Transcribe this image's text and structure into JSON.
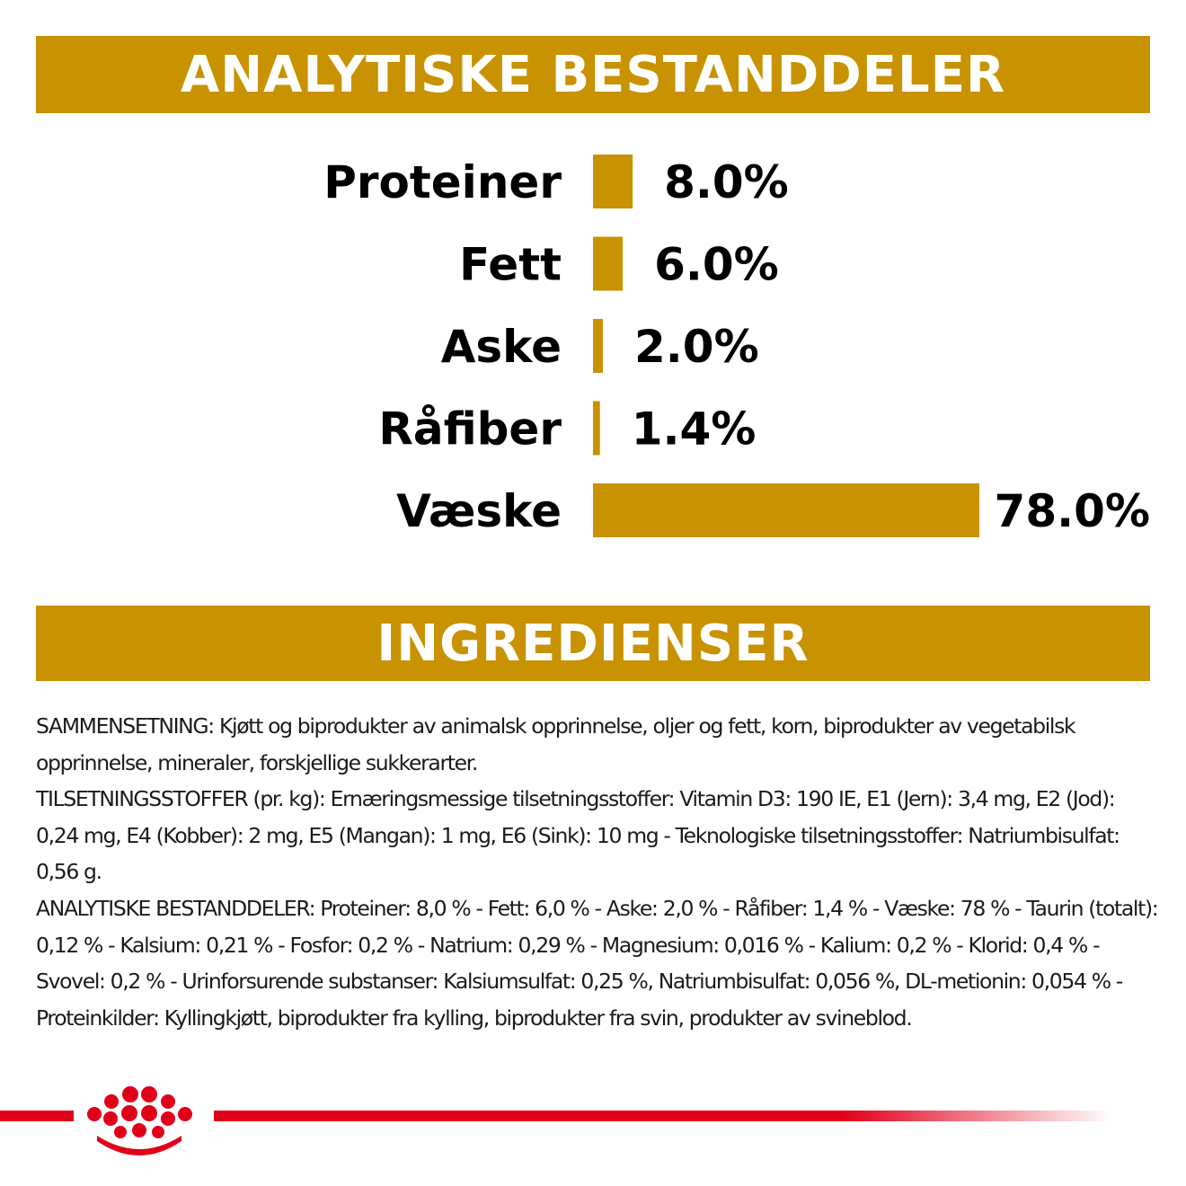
{
  "header": {
    "analytic_title": "ANALYTISKE BESTANDDELER",
    "ingredients_title": "INGREDIENSER"
  },
  "colors": {
    "accent_gold": "#c89200",
    "brand_red": "#e1001a"
  },
  "chart_data": {
    "type": "bar",
    "orientation": "horizontal",
    "categories": [
      "Proteiner",
      "Fett",
      "Aske",
      "Råfiber",
      "Væske"
    ],
    "values": [
      8.0,
      6.0,
      2.0,
      1.4,
      78.0
    ],
    "value_labels": [
      "8.0%",
      "6.0%",
      "2.0%",
      "1.4%",
      "78.0%"
    ],
    "unit": "%",
    "xlim": [
      0,
      78
    ],
    "grid": false,
    "legend": "none"
  },
  "ingredients": {
    "paragraphs": [
      "SAMMENSETNING: Kjøtt og biprodukter av animalsk opprinnelse, oljer og fett, korn, biprodukter av vegetabilsk opprinnelse, mineraler, forskjellige sukkerarter.",
      "TILSETNINGSSTOFFER (pr. kg): Ernæringsmessige tilsetningsstoffer: Vitamin D3: 190 IE, E1 (Jern): 3,4 mg, E2 (Jod): 0,24 mg, E4 (Kobber): 2 mg, E5 (Mangan): 1 mg, E6 (Sink): 10 mg - Teknologiske tilsetningsstoffer: Natriumbisulfat: 0,56 g.",
      "ANALYTISKE BESTANDDELER: Proteiner: 8,0 % - Fett: 6,0 % - Aske: 2,0 % - Råfiber: 1,4 % - Væske: 78 % - Taurin (totalt): 0,12 % - Kalsium: 0,21 % - Fosfor: 0,2 % - Natrium: 0,29 % - Magnesium: 0,016 % - Kalium: 0,2 % - Klorid: 0,4 % - Svovel: 0,2 % - Urinforsurende substanser: Kalsiumsulfat: 0,25 %, Natriumbisulfat: 0,056 %, DL-metionin: 0,054 % - Proteinkilder: Kyllingkjøtt, biprodukter fra kylling, biprodukter fra svin, produkter av svineblod."
    ]
  },
  "footer": {
    "logo_icon": "crown-logo-icon"
  }
}
